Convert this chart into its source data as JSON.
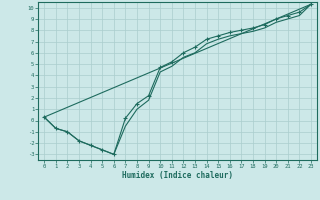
{
  "xlabel": "Humidex (Indice chaleur)",
  "bg_color": "#cce8e8",
  "line_color": "#1e6b5e",
  "grid_color": "#aacece",
  "xlim": [
    -0.5,
    23.5
  ],
  "ylim": [
    -3.5,
    10.5
  ],
  "xticks": [
    0,
    1,
    2,
    3,
    4,
    5,
    6,
    7,
    8,
    9,
    10,
    11,
    12,
    13,
    14,
    15,
    16,
    17,
    18,
    19,
    20,
    21,
    22,
    23
  ],
  "yticks": [
    -3,
    -2,
    -1,
    0,
    1,
    2,
    3,
    4,
    5,
    6,
    7,
    8,
    9,
    10
  ],
  "line1_x": [
    0,
    1,
    2,
    3,
    4,
    5,
    6,
    7,
    8,
    9,
    10,
    11,
    12,
    13,
    14,
    15,
    16,
    17,
    18,
    19,
    20,
    21,
    22,
    23
  ],
  "line1_y": [
    0.3,
    -0.7,
    -1.0,
    -1.8,
    -2.2,
    -2.6,
    -3.0,
    0.2,
    1.5,
    2.2,
    4.7,
    5.2,
    6.0,
    6.5,
    7.2,
    7.5,
    7.8,
    8.0,
    8.2,
    8.5,
    9.0,
    9.3,
    9.6,
    10.3
  ],
  "line2_x": [
    0,
    1,
    2,
    3,
    4,
    5,
    6,
    7,
    8,
    9,
    10,
    11,
    12,
    13,
    14,
    15,
    16,
    17,
    18,
    19,
    20,
    21,
    22,
    23
  ],
  "line2_y": [
    0.3,
    -0.7,
    -1.0,
    -1.8,
    -2.2,
    -2.6,
    -3.0,
    -0.5,
    1.0,
    1.8,
    4.3,
    4.8,
    5.6,
    6.0,
    6.8,
    7.2,
    7.5,
    7.7,
    7.9,
    8.2,
    8.7,
    9.0,
    9.3,
    10.3
  ],
  "line3_x": [
    0,
    23
  ],
  "line3_y": [
    0.3,
    10.3
  ]
}
